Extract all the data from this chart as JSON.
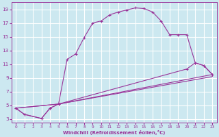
{
  "xlabel": "Windchill (Refroidissement éolien,°C)",
  "background_color": "#cce8f0",
  "grid_color": "#ffffff",
  "line_color": "#993399",
  "xlim": [
    -0.5,
    23.5
  ],
  "ylim": [
    2.5,
    20
  ],
  "xticks": [
    0,
    1,
    2,
    3,
    4,
    5,
    6,
    7,
    8,
    9,
    10,
    11,
    12,
    13,
    14,
    15,
    16,
    17,
    18,
    19,
    20,
    21,
    22,
    23
  ],
  "yticks": [
    3,
    5,
    7,
    9,
    11,
    13,
    15,
    17,
    19
  ],
  "curve1_x": [
    0,
    1,
    3,
    4,
    5,
    6,
    7,
    8,
    9,
    10,
    11,
    12,
    13,
    14,
    15,
    16,
    17,
    18,
    19,
    20,
    21,
    22,
    23
  ],
  "curve1_y": [
    4.6,
    3.7,
    3.1,
    4.6,
    5.2,
    11.7,
    12.5,
    14.9,
    17.0,
    17.3,
    18.2,
    18.6,
    18.9,
    19.2,
    19.1,
    18.6,
    17.3,
    15.3,
    15.3,
    15.3,
    11.2,
    10.8,
    9.5
  ],
  "curve2_x": [
    0,
    1,
    3,
    4,
    5,
    20,
    21,
    22,
    23
  ],
  "curve2_y": [
    4.6,
    3.7,
    3.1,
    4.6,
    5.2,
    10.3,
    11.2,
    10.8,
    9.5
  ],
  "curve3_x": [
    0,
    5,
    23
  ],
  "curve3_y": [
    4.6,
    5.2,
    9.5
  ],
  "curve4_x": [
    0,
    5,
    23
  ],
  "curve4_y": [
    4.6,
    5.2,
    9.2
  ]
}
